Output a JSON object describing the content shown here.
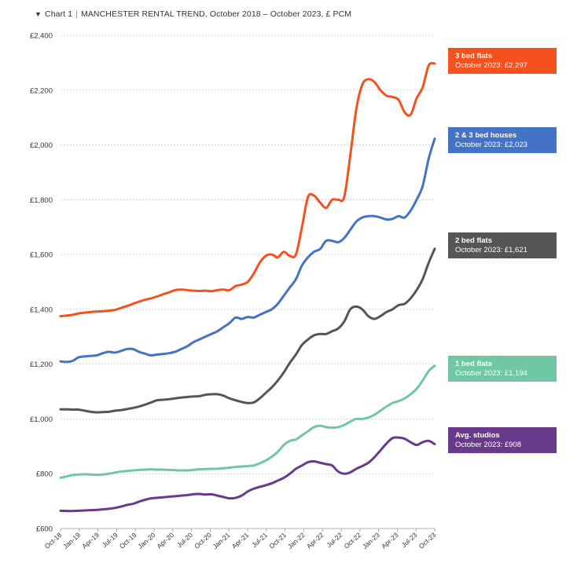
{
  "header": {
    "marker": "▼",
    "chart_label": "Chart 1",
    "separator": "|",
    "title": "MANCHESTER RENTAL TREND, October 2018 – October 2023, £ PCM"
  },
  "chart_data": {
    "type": "line",
    "title": "MANCHESTER RENTAL TREND, October 2018 – October 2023, £ PCM",
    "xlabel": "",
    "ylabel": "",
    "ylim": [
      600,
      2400
    ],
    "yticks": [
      600,
      800,
      1000,
      1200,
      1400,
      1600,
      1800,
      2000,
      2200,
      2400
    ],
    "ytick_labels": [
      "£600",
      "£800",
      "£1,000",
      "£1,200",
      "£1,400",
      "£1,600",
      "£1,800",
      "£2,000",
      "£2,200",
      "£2,400"
    ],
    "xtick_labels": [
      "Oct-18",
      "Jan-19",
      "Apr-19",
      "Jul-19",
      "Oct-19",
      "Jan-20",
      "Apr-20",
      "Jul-20",
      "Oct-20",
      "Jan-21",
      "Apr-21",
      "Jul-21",
      "Oct-21",
      "Jan-22",
      "Apr-22",
      "Jul-22",
      "Oct-22",
      "Jan-23",
      "Apr-23",
      "Jul-23",
      "Oct-23"
    ],
    "grid": true,
    "legend": "callouts-right",
    "series": [
      {
        "name": "3 bed flats",
        "color": "#f4511e",
        "callout": "October 2023: £2,297",
        "values": [
          1375,
          1377,
          1380,
          1385,
          1388,
          1390,
          1392,
          1393,
          1395,
          1398,
          1405,
          1412,
          1420,
          1428,
          1435,
          1440,
          1447,
          1455,
          1462,
          1470,
          1472,
          1470,
          1468,
          1467,
          1468,
          1466,
          1470,
          1472,
          1470,
          1485,
          1490,
          1500,
          1530,
          1570,
          1595,
          1600,
          1590,
          1610,
          1595,
          1600,
          1700,
          1810,
          1815,
          1790,
          1770,
          1800,
          1800,
          1810,
          1960,
          2130,
          2220,
          2240,
          2230,
          2200,
          2180,
          2175,
          2165,
          2120,
          2110,
          2170,
          2210,
          2290,
          2297
        ]
      },
      {
        "name": "2 & 3 bed houses",
        "color": "#4472c4",
        "callout": "October 2023: £2,023",
        "values": [
          1210,
          1208,
          1212,
          1225,
          1228,
          1230,
          1232,
          1240,
          1245,
          1242,
          1248,
          1255,
          1255,
          1245,
          1238,
          1232,
          1235,
          1237,
          1240,
          1245,
          1255,
          1265,
          1280,
          1290,
          1300,
          1310,
          1320,
          1335,
          1350,
          1370,
          1365,
          1372,
          1370,
          1380,
          1390,
          1400,
          1420,
          1450,
          1480,
          1510,
          1560,
          1590,
          1610,
          1620,
          1650,
          1650,
          1645,
          1660,
          1690,
          1720,
          1735,
          1740,
          1740,
          1735,
          1728,
          1730,
          1740,
          1735,
          1760,
          1800,
          1850,
          1950,
          2023
        ]
      },
      {
        "name": "2 bed flats",
        "color": "#555555",
        "callout": "October 2023: £1,621",
        "values": [
          1035,
          1035,
          1034,
          1034,
          1030,
          1026,
          1024,
          1025,
          1026,
          1030,
          1032,
          1036,
          1040,
          1045,
          1052,
          1060,
          1068,
          1070,
          1072,
          1075,
          1078,
          1080,
          1082,
          1083,
          1088,
          1090,
          1090,
          1085,
          1075,
          1068,
          1062,
          1058,
          1060,
          1075,
          1095,
          1115,
          1140,
          1170,
          1205,
          1235,
          1270,
          1290,
          1305,
          1310,
          1310,
          1320,
          1330,
          1355,
          1400,
          1410,
          1400,
          1375,
          1365,
          1375,
          1390,
          1400,
          1415,
          1420,
          1440,
          1470,
          1510,
          1570,
          1621
        ]
      },
      {
        "name": "1 bed flats",
        "color": "#6fc7a4",
        "callout": "October 2023: £1,194",
        "values": [
          785,
          790,
          795,
          797,
          798,
          797,
          796,
          797,
          800,
          804,
          808,
          810,
          812,
          814,
          815,
          816,
          815,
          815,
          814,
          813,
          812,
          812,
          814,
          816,
          817,
          818,
          818,
          820,
          822,
          825,
          826,
          828,
          830,
          838,
          848,
          862,
          880,
          905,
          920,
          925,
          940,
          955,
          970,
          975,
          970,
          968,
          970,
          978,
          990,
          1000,
          1000,
          1005,
          1015,
          1030,
          1045,
          1058,
          1065,
          1075,
          1090,
          1110,
          1140,
          1175,
          1194
        ]
      },
      {
        "name": "Avg. studios",
        "color": "#6a3a8a",
        "callout": "October 2023: £908",
        "values": [
          665,
          664,
          664,
          665,
          666,
          667,
          668,
          670,
          672,
          675,
          680,
          686,
          690,
          698,
          705,
          710,
          712,
          714,
          716,
          718,
          720,
          722,
          725,
          726,
          724,
          725,
          720,
          715,
          710,
          712,
          720,
          735,
          745,
          752,
          758,
          765,
          775,
          785,
          800,
          818,
          830,
          842,
          845,
          840,
          835,
          830,
          808,
          800,
          805,
          818,
          828,
          840,
          860,
          885,
          910,
          930,
          932,
          928,
          915,
          905,
          915,
          920,
          908
        ]
      }
    ]
  }
}
